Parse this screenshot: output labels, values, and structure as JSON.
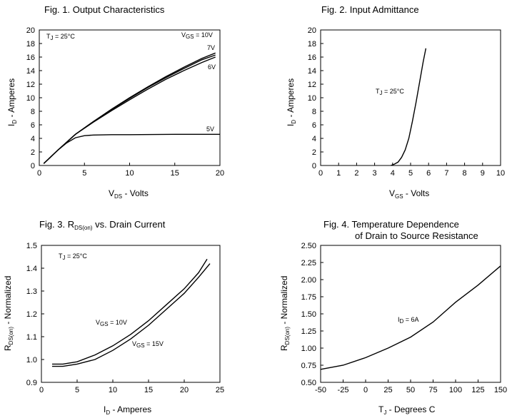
{
  "chart_data": [
    {
      "id": "fig1",
      "type": "line",
      "title": "Fig. 1. Output Characteristics",
      "xlabel": {
        "main": "V",
        "sub": "DS",
        "rest": " - Volts"
      },
      "ylabel": {
        "main": "I",
        "sub": "D",
        "rest": " - Amperes"
      },
      "xlim": [
        0,
        20
      ],
      "ylim": [
        0,
        20
      ],
      "xticks": [
        0,
        5,
        10,
        15,
        20
      ],
      "yticks": [
        0,
        2,
        4,
        6,
        8,
        10,
        12,
        14,
        16,
        18,
        20
      ],
      "condition": {
        "main": "T",
        "sub": "J",
        "rest": " = 25°C"
      },
      "series": [
        {
          "name": "V_GS = 10V",
          "x": [
            0.5,
            2,
            4,
            6,
            8,
            10,
            12,
            14,
            16,
            18,
            19.5
          ],
          "y": [
            0.3,
            2.2,
            4.6,
            6.5,
            8.3,
            10.0,
            11.6,
            13.1,
            14.5,
            15.8,
            16.6
          ]
        },
        {
          "name": "7V",
          "x": [
            0.5,
            2,
            4,
            6,
            8,
            10,
            12,
            14,
            16,
            18,
            19.5
          ],
          "y": [
            0.3,
            2.2,
            4.6,
            6.5,
            8.25,
            9.9,
            11.5,
            12.95,
            14.3,
            15.6,
            16.3
          ]
        },
        {
          "name": "6V",
          "x": [
            0.5,
            2,
            4,
            6,
            8,
            10,
            12,
            14,
            16,
            18,
            19.5
          ],
          "y": [
            0.3,
            2.2,
            4.6,
            6.4,
            8.1,
            9.7,
            11.25,
            12.7,
            14.0,
            15.2,
            16.0
          ]
        },
        {
          "name": "5V",
          "x": [
            0.5,
            2,
            3,
            4,
            5,
            6,
            8,
            10,
            15,
            20
          ],
          "y": [
            0.3,
            2.2,
            3.3,
            4.1,
            4.4,
            4.5,
            4.55,
            4.55,
            4.6,
            4.6
          ]
        }
      ],
      "labels": [
        {
          "text": "V",
          "sub": "GS",
          "rest": " = 10V"
        },
        {
          "text": "7V"
        },
        {
          "text": "6V"
        },
        {
          "text": "5V"
        }
      ]
    },
    {
      "id": "fig2",
      "type": "line",
      "title": "Fig. 2. Input Admittance",
      "xlabel": {
        "main": "V",
        "sub": "GS",
        "rest": " - Volts"
      },
      "ylabel": {
        "main": "I",
        "sub": "D",
        "rest": " - Amperes"
      },
      "xlim": [
        0,
        10
      ],
      "ylim": [
        0,
        20
      ],
      "xticks": [
        0,
        1,
        2,
        3,
        4,
        5,
        6,
        7,
        8,
        9,
        10
      ],
      "yticks": [
        0,
        2,
        4,
        6,
        8,
        10,
        12,
        14,
        16,
        18,
        20
      ],
      "condition": {
        "main": "T",
        "sub": "J",
        "rest": " = 25°C"
      },
      "series": [
        {
          "name": "I_D",
          "x": [
            3.9,
            4.1,
            4.3,
            4.5,
            4.7,
            4.9,
            5.1,
            5.3,
            5.5,
            5.7,
            5.85
          ],
          "y": [
            0.0,
            0.2,
            0.5,
            1.2,
            2.3,
            4.0,
            6.5,
            9.3,
            12.3,
            15.3,
            17.3
          ]
        }
      ]
    },
    {
      "id": "fig3",
      "type": "line",
      "title": {
        "main": "Fig. 3. R",
        "sub": "DS(on)",
        "rest": " vs. Drain Current"
      },
      "xlabel": {
        "main": "I",
        "sub": "D",
        "rest": " - Amperes"
      },
      "ylabel": {
        "main": "R",
        "sub": "DS(on)",
        "rest": " - Normalized"
      },
      "xlim": [
        0,
        25
      ],
      "ylim": [
        0.9,
        1.5
      ],
      "xticks": [
        0,
        5,
        10,
        15,
        20,
        25
      ],
      "yticks": [
        "0.9",
        "1.0",
        "1.1",
        "1.2",
        "1.3",
        "1.4",
        "1.5"
      ],
      "condition": {
        "main": "T",
        "sub": "J",
        "rest": " = 25°C"
      },
      "series": [
        {
          "name": "V_GS = 10V",
          "x": [
            1.5,
            3,
            5,
            7.5,
            10,
            12.5,
            15,
            17.5,
            20,
            22,
            23.2
          ],
          "y": [
            0.98,
            0.98,
            0.99,
            1.02,
            1.06,
            1.11,
            1.17,
            1.24,
            1.31,
            1.38,
            1.44
          ]
        },
        {
          "name": "V_GS = 15V",
          "x": [
            1.5,
            3,
            5,
            7.5,
            10,
            12.5,
            15,
            17.5,
            20,
            22,
            23.6
          ],
          "y": [
            0.97,
            0.97,
            0.98,
            1.0,
            1.04,
            1.09,
            1.15,
            1.22,
            1.29,
            1.36,
            1.42
          ]
        }
      ],
      "labels": [
        {
          "text": "V",
          "sub": "GS",
          "rest": " = 10V"
        },
        {
          "text": "V",
          "sub": "GS",
          "rest": " = 15V"
        }
      ]
    },
    {
      "id": "fig4",
      "type": "line",
      "title": [
        "Fig. 4. Temperature Dependence",
        "of Drain to Source Resistance"
      ],
      "xlabel": {
        "main": "T",
        "sub": "J",
        "rest": " - Degrees C"
      },
      "ylabel": {
        "main": "R",
        "sub": "DS(on)",
        "rest": " - Normalized"
      },
      "xlim": [
        -50,
        150
      ],
      "ylim": [
        0.5,
        2.5
      ],
      "xticks": [
        "-50",
        "-25",
        "0",
        "25",
        "50",
        "75",
        "100",
        "125",
        "150"
      ],
      "yticks": [
        "0.50",
        "0.75",
        "1.00",
        "1.25",
        "1.50",
        "1.75",
        "2.00",
        "2.25",
        "2.50"
      ],
      "series": [
        {
          "name": "I_D = 6A",
          "x": [
            -50,
            -25,
            0,
            25,
            50,
            75,
            100,
            125,
            150
          ],
          "y": [
            0.69,
            0.75,
            0.86,
            1.0,
            1.16,
            1.38,
            1.67,
            1.92,
            2.2
          ]
        }
      ],
      "labels": [
        {
          "text": "I",
          "sub": "D",
          "rest": " = 6A"
        }
      ]
    }
  ]
}
